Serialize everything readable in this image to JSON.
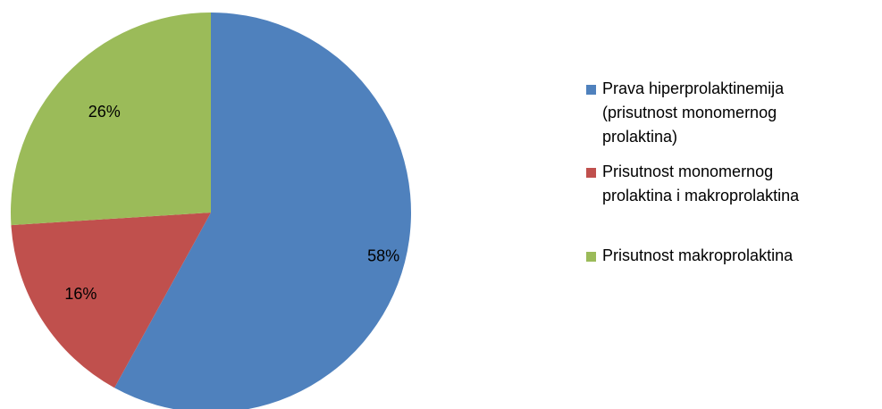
{
  "chart_data": {
    "type": "pie",
    "start_angle_deg": 0,
    "direction": "clockwise",
    "slices": [
      {
        "label": "Prava hiperprolaktinemija\n(prisutnost monomernog\nprolaktina)",
        "value": 58,
        "value_label": "58%",
        "color": "#4F81BD"
      },
      {
        "label": "Prisutnost monomernog\nprolaktina i makroprolaktina",
        "value": 16,
        "value_label": "16%",
        "color": "#C0504D"
      },
      {
        "label": "Prisutnost makroprolaktina",
        "value": 26,
        "value_label": "26%",
        "color": "#9BBB59"
      }
    ],
    "legend_position": "right"
  }
}
